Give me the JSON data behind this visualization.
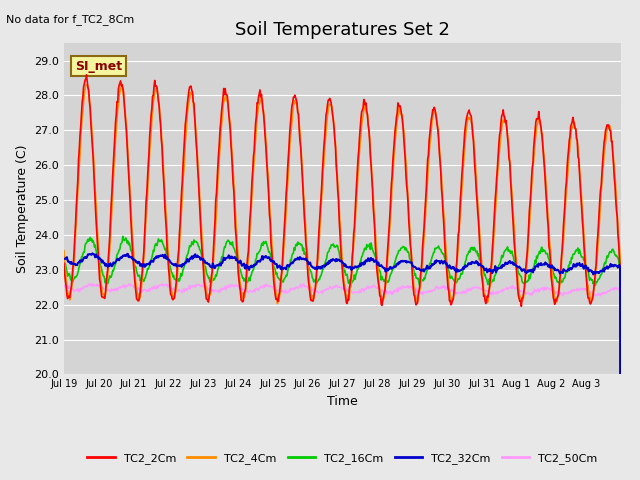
{
  "title": "Soil Temperatures Set 2",
  "subtitle": "No data for f_TC2_8Cm",
  "ylabel": "Soil Temperature (C)",
  "xlabel": "Time",
  "ylim": [
    20.0,
    29.5
  ],
  "yticks": [
    20.0,
    21.0,
    22.0,
    23.0,
    24.0,
    25.0,
    26.0,
    27.0,
    28.0,
    29.0
  ],
  "xtick_labels": [
    "Jul 19",
    "Jul 20",
    "Jul 21",
    "Jul 22",
    "Jul 23",
    "Jul 24",
    "Jul 25",
    "Jul 26",
    "Jul 27",
    "Jul 28",
    "Jul 29",
    "Jul 30",
    "Jul 31",
    "Aug 1",
    "Aug 2",
    "Aug 3"
  ],
  "legend_labels": [
    "TC2_2Cm",
    "TC2_4Cm",
    "TC2_16Cm",
    "TC2_32Cm",
    "TC2_50Cm"
  ],
  "legend_colors": [
    "#ff0000",
    "#ff8c00",
    "#00cc00",
    "#0000cc",
    "#ff99ff"
  ],
  "annotation_text": "SI_met",
  "bg_color": "#e8e8e8",
  "plot_bg_color": "#d4d4d4",
  "n_days": 16,
  "n_per_day": 48
}
